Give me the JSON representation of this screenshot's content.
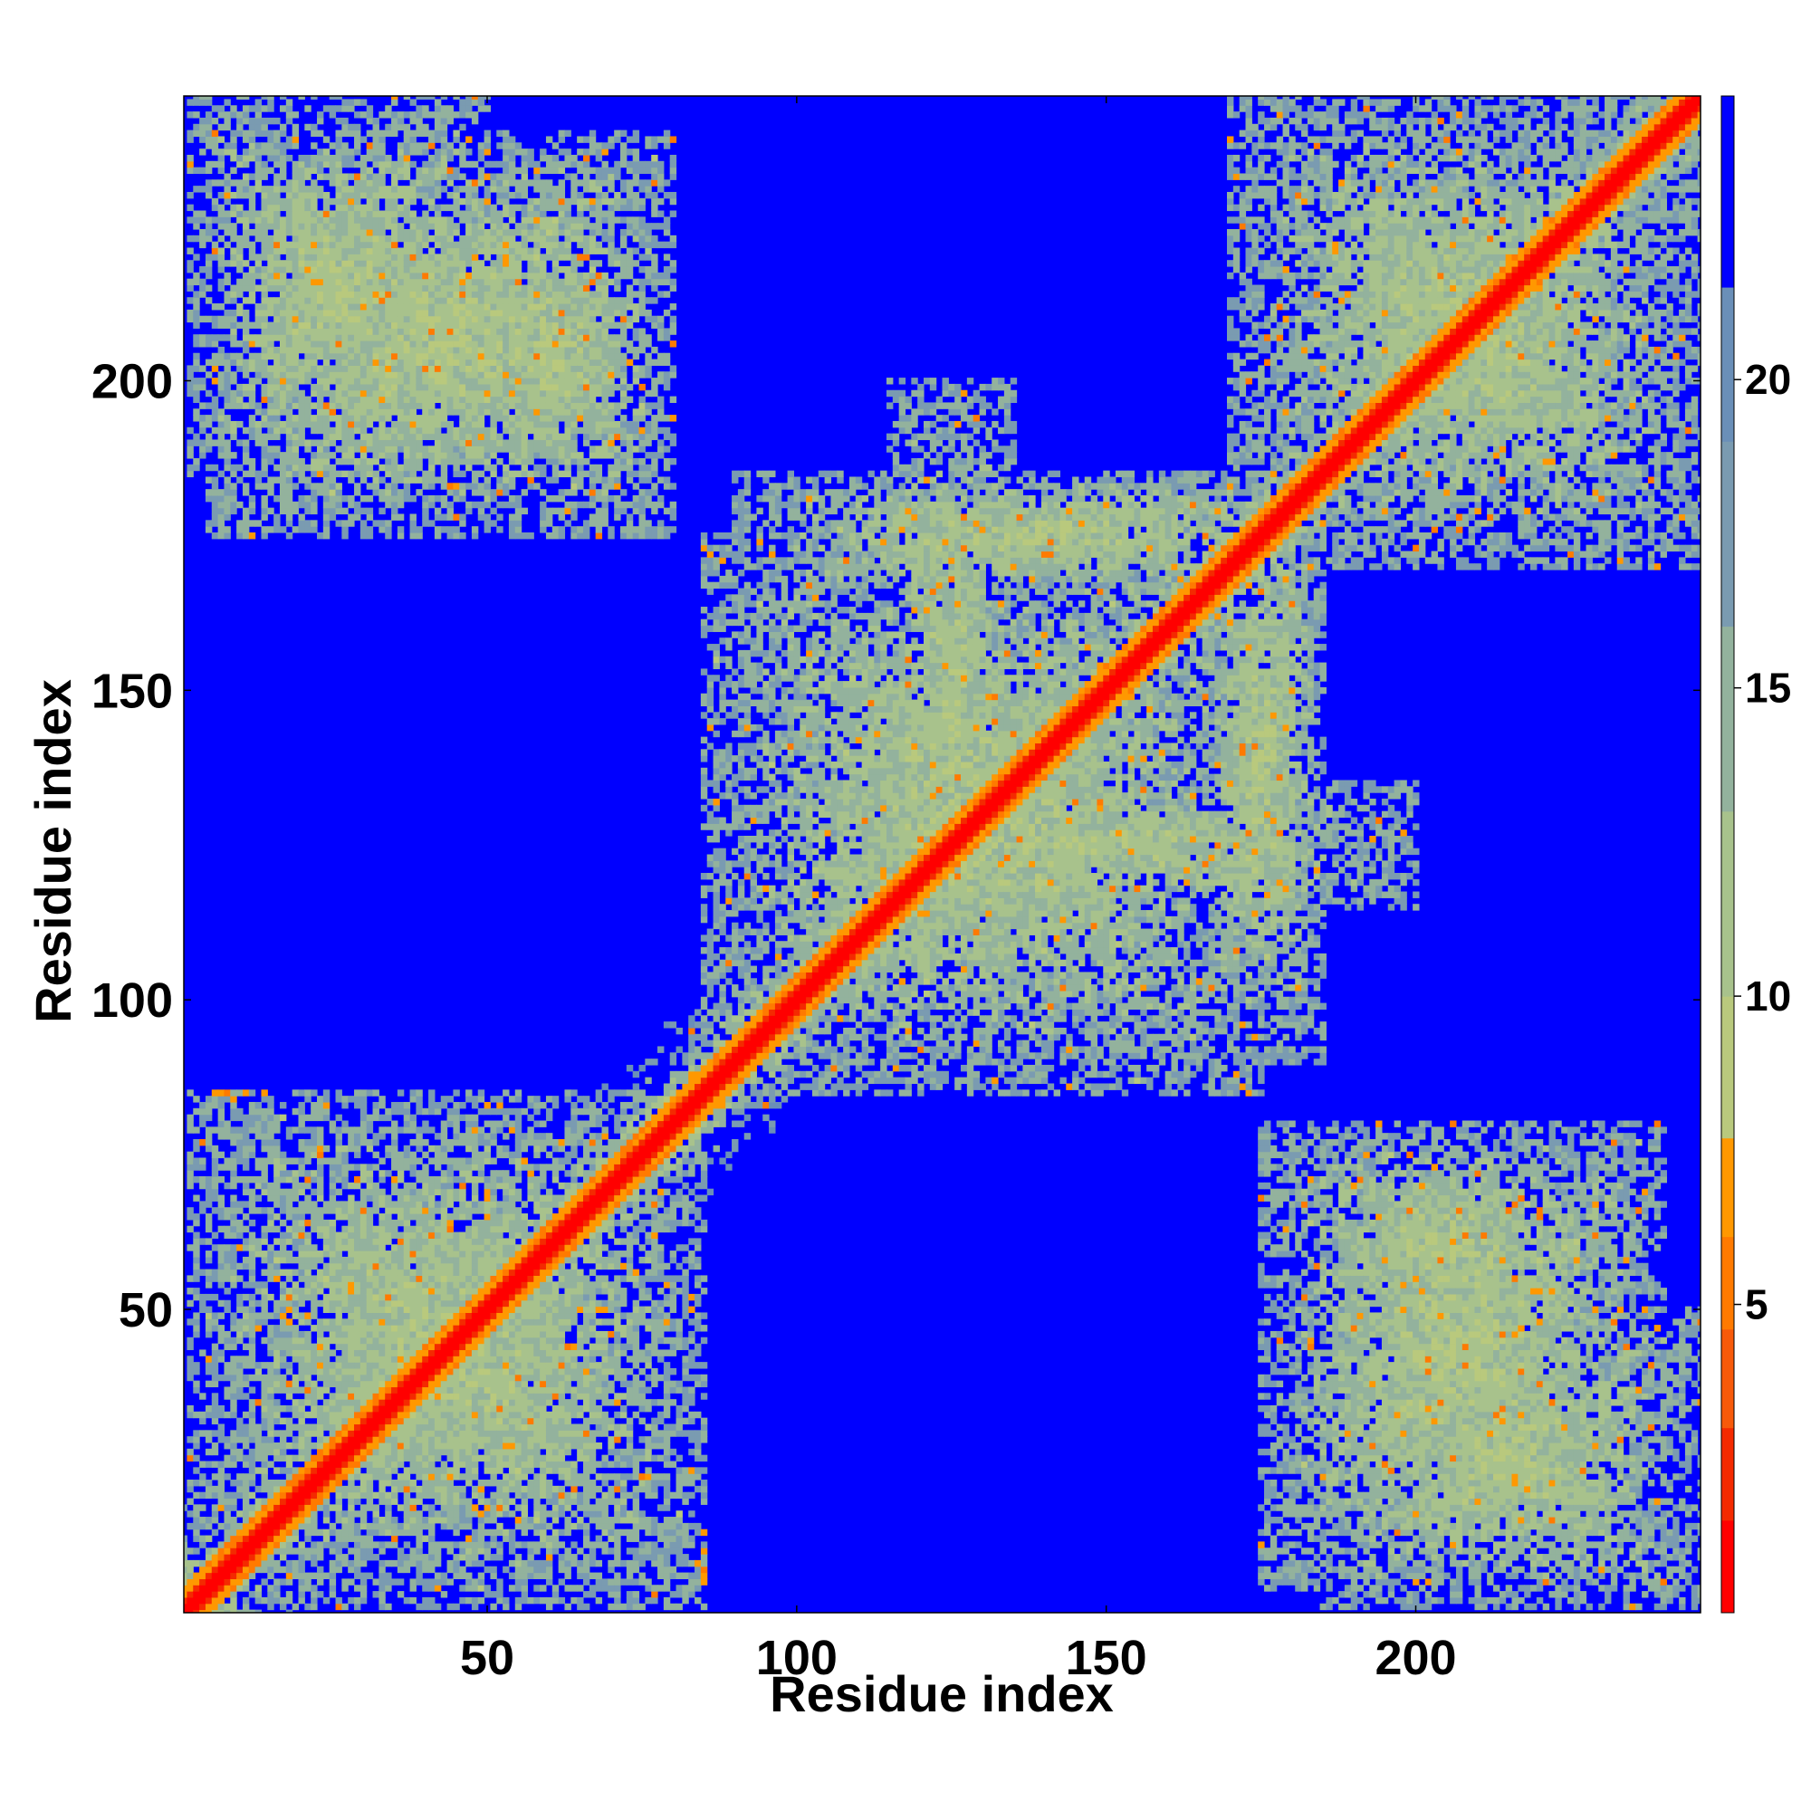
{
  "chart_data": {
    "type": "heatmap",
    "title": "",
    "xlabel": "Residue index",
    "ylabel": "Residue index",
    "n_residues": 246,
    "xlim": [
      1,
      246
    ],
    "ylim": [
      1,
      246
    ],
    "x_ticks": [
      50,
      100,
      150,
      200
    ],
    "y_ticks": [
      50,
      100,
      150,
      200
    ],
    "legend": "colorbar-right",
    "colorbar": {
      "range": [
        0,
        24.6
      ],
      "ticks": [
        5,
        10,
        15,
        20
      ],
      "bands": [
        {
          "min": 0,
          "max": 1.5,
          "color": "#ff0000"
        },
        {
          "min": 1.5,
          "max": 3.0,
          "color": "#f42a00"
        },
        {
          "min": 3.0,
          "max": 4.6,
          "color": "#f75a0a"
        },
        {
          "min": 4.6,
          "max": 6.1,
          "color": "#ff7a00"
        },
        {
          "min": 6.1,
          "max": 7.7,
          "color": "#ff9800"
        },
        {
          "min": 7.7,
          "max": 10.0,
          "color": "#b9c97d"
        },
        {
          "min": 10.0,
          "max": 13.0,
          "color": "#a8c28c"
        },
        {
          "min": 13.0,
          "max": 16.0,
          "color": "#93b29d"
        },
        {
          "min": 16.0,
          "max": 19.0,
          "color": "#7a9bb1"
        },
        {
          "min": 19.0,
          "max": 21.5,
          "color": "#6a8fb8"
        },
        {
          "min": 21.5,
          "max": 24.6,
          "color": "#0000ff"
        }
      ]
    },
    "background_color": "#0000ff",
    "value_description": "pairwise residue distance map, symmetric about diagonal; diagonal near 0",
    "contact_regions": [
      {
        "x": [
          2,
          85
        ],
        "y": [
          2,
          85
        ]
      },
      {
        "x": [
          85,
          175
        ],
        "y": [
          85,
          175
        ]
      },
      {
        "x": [
          170,
          246
        ],
        "y": [
          170,
          246
        ]
      },
      {
        "x": [
          2,
          50
        ],
        "y": [
          185,
          246
        ]
      },
      {
        "x": [
          185,
          246
        ],
        "y": [
          2,
          50
        ]
      },
      {
        "x": [
          90,
          200
        ],
        "y": [
          115,
          135
        ]
      },
      {
        "x": [
          115,
          135
        ],
        "y": [
          90,
          200
        ]
      },
      {
        "x": [
          165,
          185
        ],
        "y": [
          90,
          185
        ]
      },
      {
        "x": [
          90,
          185
        ],
        "y": [
          165,
          185
        ]
      },
      {
        "x": [
          40,
          80
        ],
        "y": [
          180,
          230
        ]
      },
      {
        "x": [
          180,
          230
        ],
        "y": [
          40,
          80
        ]
      },
      {
        "x": [
          175,
          240
        ],
        "y": [
          5,
          80
        ]
      },
      {
        "x": [
          5,
          80
        ],
        "y": [
          175,
          240
        ]
      }
    ]
  }
}
